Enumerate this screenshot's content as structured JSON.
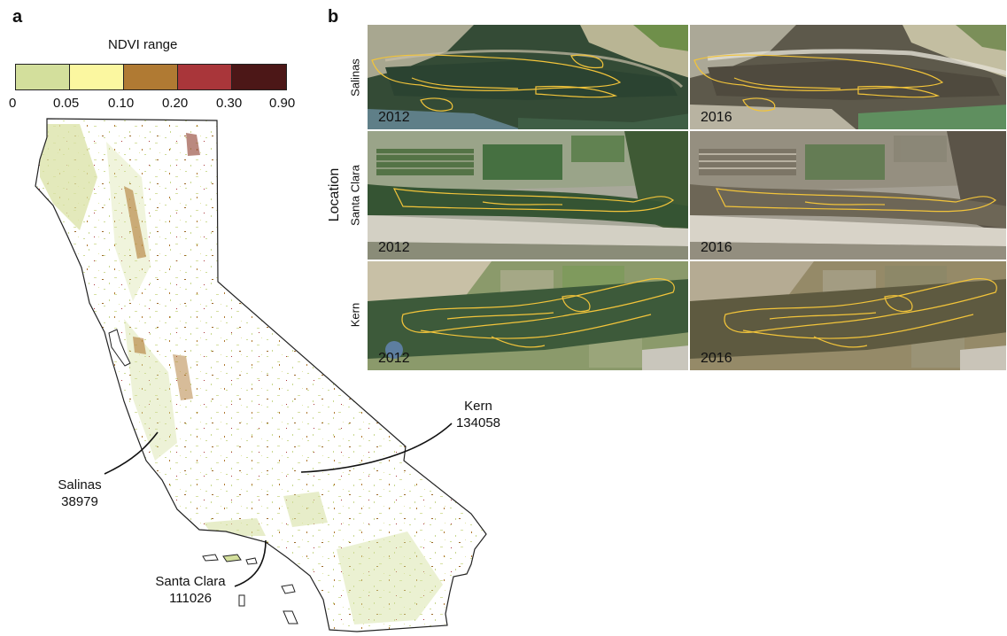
{
  "panel_a": {
    "label": "a",
    "legend": {
      "title": "NDVI range",
      "bins": [
        {
          "color": "#d3df9c"
        },
        {
          "color": "#fbf7a0"
        },
        {
          "color": "#b07a33"
        },
        {
          "color": "#a9363a"
        },
        {
          "color": "#4c1717"
        }
      ],
      "ticks": [
        "0",
        "0.05",
        "0.10",
        "0.20",
        "0.30",
        "0.90"
      ]
    },
    "callouts": {
      "kern": {
        "name": "Kern",
        "value": "134058"
      },
      "salinas": {
        "name": "Salinas",
        "value": "38979"
      },
      "santa_clara": {
        "name": "Santa Clara",
        "value": "111026"
      }
    }
  },
  "panel_b": {
    "label": "b",
    "axis_label": "Location",
    "rows": [
      {
        "name": "Salinas",
        "years": [
          "2012",
          "2016"
        ]
      },
      {
        "name": "Santa Clara",
        "years": [
          "2012",
          "2016"
        ]
      },
      {
        "name": "Kern",
        "years": [
          "2012",
          "2016"
        ]
      }
    ],
    "outline_color": "#f2c43a"
  }
}
